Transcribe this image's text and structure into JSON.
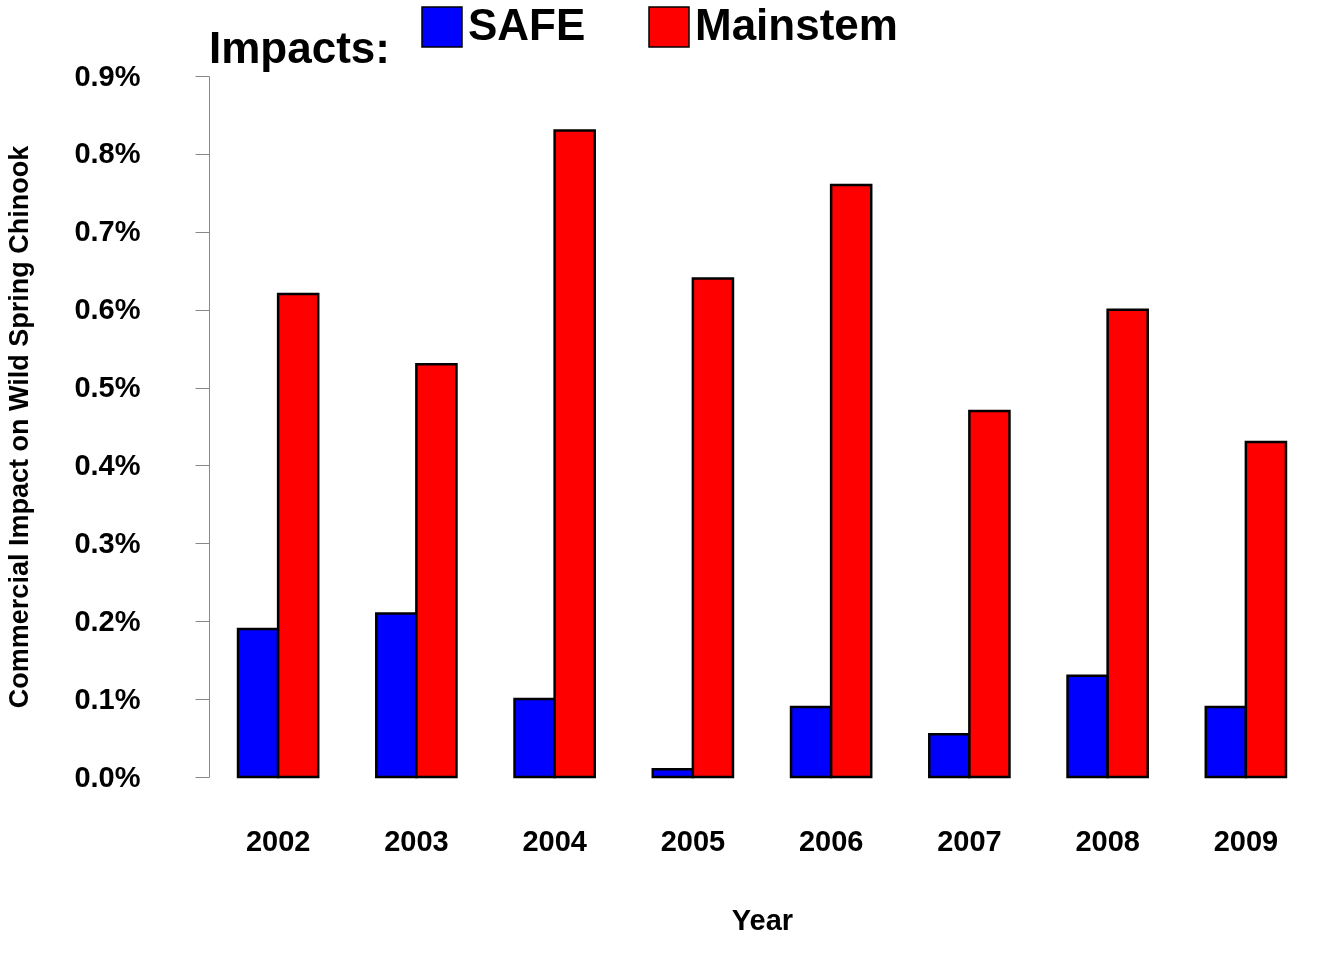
{
  "chart_data": {
    "type": "bar",
    "xlabel": "Year",
    "ylabel": "Commercial Impact on Wild Spring Chinook",
    "legend_title": "Impacts:",
    "legend": "top",
    "categories": [
      "2002",
      "2003",
      "2004",
      "2005",
      "2006",
      "2007",
      "2008",
      "2009"
    ],
    "series": [
      {
        "name": "SAFE",
        "color": "#0000ff",
        "values": [
          0.19,
          0.21,
          0.1,
          0.01,
          0.09,
          0.055,
          0.13,
          0.09
        ]
      },
      {
        "name": "Mainstem",
        "color": "#ff0000",
        "values": [
          0.62,
          0.53,
          0.83,
          0.64,
          0.76,
          0.47,
          0.6,
          0.43
        ]
      }
    ],
    "ylim": [
      0,
      0.9
    ],
    "yticks": [
      {
        "value": 0,
        "label": "0.0%"
      },
      {
        "value": 0.1,
        "label": "0.1%"
      },
      {
        "value": 0.2,
        "label": "0.2%"
      },
      {
        "value": 0.3,
        "label": "0.3%"
      },
      {
        "value": 0.4,
        "label": "0.4%"
      },
      {
        "value": 0.5,
        "label": "0.5%"
      },
      {
        "value": 0.6,
        "label": "0.6%"
      },
      {
        "value": 0.7,
        "label": "0.7%"
      },
      {
        "value": 0.8,
        "label": "0.8%"
      },
      {
        "value": 0.9,
        "label": "0.9%"
      }
    ]
  }
}
